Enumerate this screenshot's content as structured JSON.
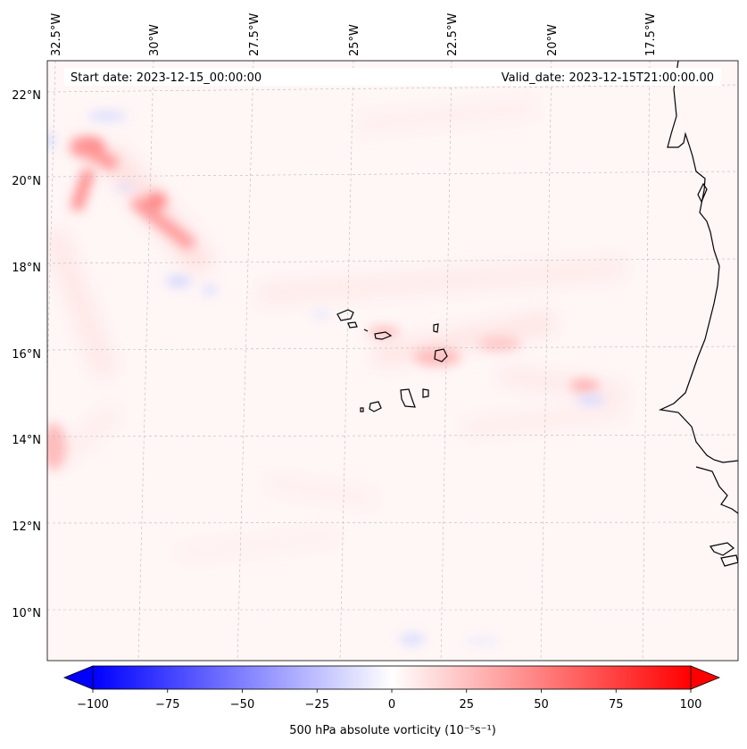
{
  "header": {
    "start_date": "Start date: 2023-12-15_00:00:00",
    "valid_date": "Valid_date: 2023-12-15T21:00:00.00"
  },
  "map": {
    "lon_labels": [
      "32.5°W",
      "30°W",
      "27.5°W",
      "25°W",
      "22.5°W",
      "20°W",
      "17.5°W"
    ],
    "lat_labels": [
      "22°N",
      "20°N",
      "18°N",
      "16°N",
      "14°N",
      "12°N",
      "10°N"
    ],
    "gridlines": "dashed"
  },
  "colorbar": {
    "ticks": [
      "−100",
      "−75",
      "−50",
      "−25",
      "0",
      "25",
      "50",
      "75",
      "100"
    ],
    "range": [
      -100,
      100
    ],
    "cmap": "bwr",
    "colors": {
      "min": "#0000ff",
      "mid": "#ffffff",
      "max": "#ff0000"
    },
    "label": "500 hPa absolute vorticity (10⁻⁵s⁻¹)"
  }
}
